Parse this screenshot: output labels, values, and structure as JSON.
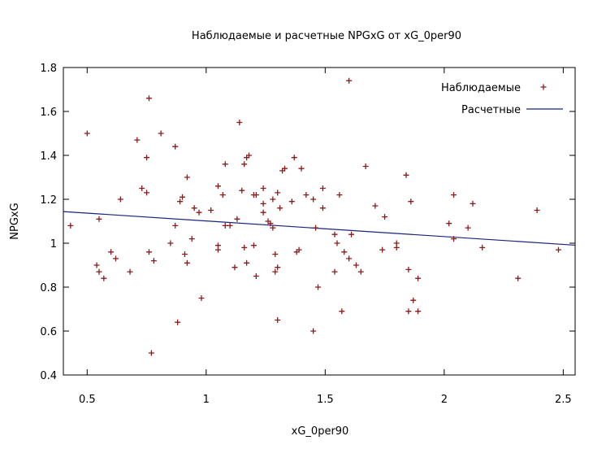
{
  "chart_data": {
    "type": "scatter",
    "title": "Наблюдаемые и расчетные NPGxG от xG_0per90",
    "xlabel": "xG_0per90",
    "ylabel": "NPGxG",
    "xlim": [
      0.4,
      2.55
    ],
    "ylim": [
      0.4,
      1.8
    ],
    "xticks": [
      0.5,
      1,
      1.5,
      2,
      2.5
    ],
    "xtick_labels": [
      "0.5",
      "1",
      "1.5",
      "2",
      "2.5"
    ],
    "yticks": [
      0.4,
      0.6,
      0.8,
      1.0,
      1.2,
      1.4,
      1.6,
      1.8
    ],
    "ytick_labels": [
      "0.4",
      "0.6",
      "0.8",
      "1",
      "1.2",
      "1.4",
      "1.6",
      "1.8"
    ],
    "grid": false,
    "legend_position": "top-right",
    "series": [
      {
        "name": "Наблюдаемые",
        "kind": "scatter",
        "marker": "plus",
        "color": "#8b1a1a",
        "points": [
          [
            0.43,
            1.08
          ],
          [
            0.5,
            1.5
          ],
          [
            0.54,
            0.9
          ],
          [
            0.55,
            0.87
          ],
          [
            0.55,
            1.11
          ],
          [
            0.57,
            0.84
          ],
          [
            0.6,
            0.96
          ],
          [
            0.62,
            0.93
          ],
          [
            0.64,
            1.2
          ],
          [
            0.68,
            0.87
          ],
          [
            0.71,
            1.47
          ],
          [
            0.73,
            1.25
          ],
          [
            0.75,
            1.23
          ],
          [
            0.75,
            1.39
          ],
          [
            0.76,
            1.66
          ],
          [
            0.76,
            0.96
          ],
          [
            0.77,
            0.5
          ],
          [
            0.78,
            0.92
          ],
          [
            0.81,
            1.5
          ],
          [
            0.85,
            1.0
          ],
          [
            0.87,
            1.08
          ],
          [
            0.87,
            1.44
          ],
          [
            0.88,
            0.64
          ],
          [
            0.9,
            1.21
          ],
          [
            0.89,
            1.19
          ],
          [
            0.91,
            0.95
          ],
          [
            0.92,
            1.3
          ],
          [
            0.92,
            0.91
          ],
          [
            0.94,
            1.02
          ],
          [
            0.95,
            1.16
          ],
          [
            0.97,
            1.14
          ],
          [
            0.98,
            0.75
          ],
          [
            1.02,
            1.15
          ],
          [
            1.05,
            1.26
          ],
          [
            1.05,
            0.97
          ],
          [
            1.05,
            0.99
          ],
          [
            1.07,
            1.22
          ],
          [
            1.08,
            1.36
          ],
          [
            1.08,
            1.08
          ],
          [
            1.1,
            1.08
          ],
          [
            1.12,
            0.89
          ],
          [
            1.13,
            1.11
          ],
          [
            1.14,
            1.55
          ],
          [
            1.15,
            1.24
          ],
          [
            1.16,
            1.36
          ],
          [
            1.16,
            0.98
          ],
          [
            1.17,
            1.39
          ],
          [
            1.18,
            1.4
          ],
          [
            1.17,
            0.91
          ],
          [
            1.2,
            1.22
          ],
          [
            1.2,
            0.99
          ],
          [
            1.21,
            0.85
          ],
          [
            1.21,
            1.22
          ],
          [
            1.24,
            1.25
          ],
          [
            1.24,
            1.18
          ],
          [
            1.24,
            1.14
          ],
          [
            1.26,
            1.1
          ],
          [
            1.27,
            1.09
          ],
          [
            1.28,
            1.2
          ],
          [
            1.28,
            1.07
          ],
          [
            1.3,
            1.23
          ],
          [
            1.29,
            0.95
          ],
          [
            1.29,
            0.87
          ],
          [
            1.3,
            0.89
          ],
          [
            1.3,
            0.65
          ],
          [
            1.31,
            1.16
          ],
          [
            1.32,
            1.33
          ],
          [
            1.33,
            1.34
          ],
          [
            1.36,
            1.19
          ],
          [
            1.37,
            1.39
          ],
          [
            1.38,
            0.96
          ],
          [
            1.39,
            0.97
          ],
          [
            1.4,
            1.34
          ],
          [
            1.42,
            1.22
          ],
          [
            1.45,
            1.2
          ],
          [
            1.45,
            0.6
          ],
          [
            1.46,
            1.07
          ],
          [
            1.47,
            0.8
          ],
          [
            1.49,
            1.16
          ],
          [
            1.49,
            1.25
          ],
          [
            1.54,
            1.04
          ],
          [
            1.54,
            0.87
          ],
          [
            1.55,
            1.0
          ],
          [
            1.56,
            1.22
          ],
          [
            1.57,
            0.69
          ],
          [
            1.58,
            0.96
          ],
          [
            1.6,
            0.93
          ],
          [
            1.6,
            1.74
          ],
          [
            1.61,
            1.04
          ],
          [
            1.63,
            0.9
          ],
          [
            1.65,
            0.87
          ],
          [
            1.67,
            1.35
          ],
          [
            1.71,
            1.17
          ],
          [
            1.74,
            0.97
          ],
          [
            1.75,
            1.12
          ],
          [
            1.8,
            1.0
          ],
          [
            1.8,
            0.98
          ],
          [
            1.84,
            1.31
          ],
          [
            1.85,
            0.88
          ],
          [
            1.85,
            0.69
          ],
          [
            1.86,
            1.19
          ],
          [
            1.87,
            0.74
          ],
          [
            1.89,
            0.69
          ],
          [
            1.89,
            0.84
          ],
          [
            2.02,
            1.09
          ],
          [
            2.04,
            1.02
          ],
          [
            2.04,
            1.22
          ],
          [
            2.1,
            1.07
          ],
          [
            2.12,
            1.18
          ],
          [
            2.16,
            0.98
          ],
          [
            2.31,
            0.84
          ],
          [
            2.39,
            1.15
          ],
          [
            2.48,
            0.97
          ]
        ]
      },
      {
        "name": "Расчетные",
        "kind": "line",
        "color": "#1a237e",
        "points": [
          [
            0.4,
            1.144
          ],
          [
            2.55,
            0.991
          ]
        ]
      }
    ]
  }
}
